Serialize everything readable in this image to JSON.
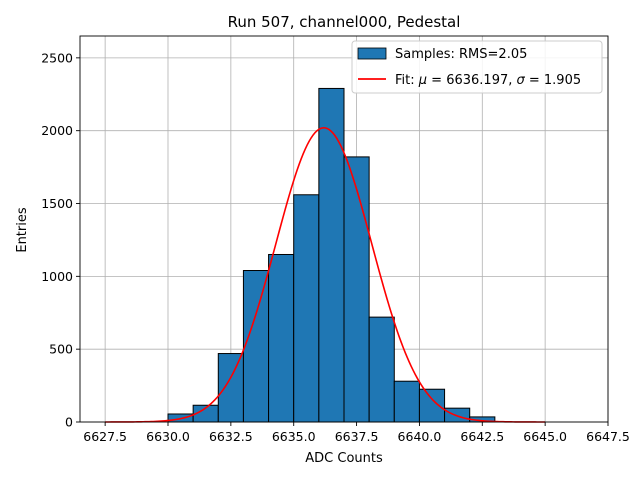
{
  "chart_data": {
    "type": "bar",
    "title": "Run 507, channel000, Pedestal",
    "xlabel": "ADC Counts",
    "ylabel": "Entries",
    "xlim": [
      6626.5,
      6647.5
    ],
    "ylim": [
      0,
      2650
    ],
    "grid": true,
    "legend_position": "top-right",
    "x_ticks": [
      6627.5,
      6630.0,
      6632.5,
      6635.0,
      6637.5,
      6640.0,
      6642.5,
      6645.0,
      6647.5
    ],
    "x_tick_labels": [
      "6627.5",
      "6630.0",
      "6632.5",
      "6635.0",
      "6637.5",
      "6640.0",
      "6642.5",
      "6645.0",
      "6647.5"
    ],
    "y_ticks": [
      0,
      500,
      1000,
      1500,
      2000,
      2500
    ],
    "y_tick_labels": [
      "0",
      "500",
      "1000",
      "1500",
      "2000",
      "2500"
    ],
    "histogram": {
      "name": "Samples: RMS=2.05",
      "color": "#1f77b4",
      "edge_color": "#000000",
      "bin_edges": [
        6630,
        6631,
        6632,
        6633,
        6634,
        6635,
        6636,
        6637,
        6638,
        6639,
        6640,
        6641,
        6642,
        6643
      ],
      "counts": [
        55,
        115,
        470,
        1040,
        1150,
        1560,
        2290,
        1820,
        720,
        280,
        225,
        95,
        35
      ]
    },
    "fit": {
      "name_prefix": "Fit: ",
      "mu_symbol": "μ",
      "mu_text": " = 6636.197, ",
      "sigma_symbol": "σ",
      "sigma_text": " = 1.905",
      "color": "#ff0000",
      "mu": 6636.197,
      "sigma": 1.905,
      "amplitude": 2020,
      "x_range": [
        6627.5,
        6645.0
      ]
    }
  }
}
